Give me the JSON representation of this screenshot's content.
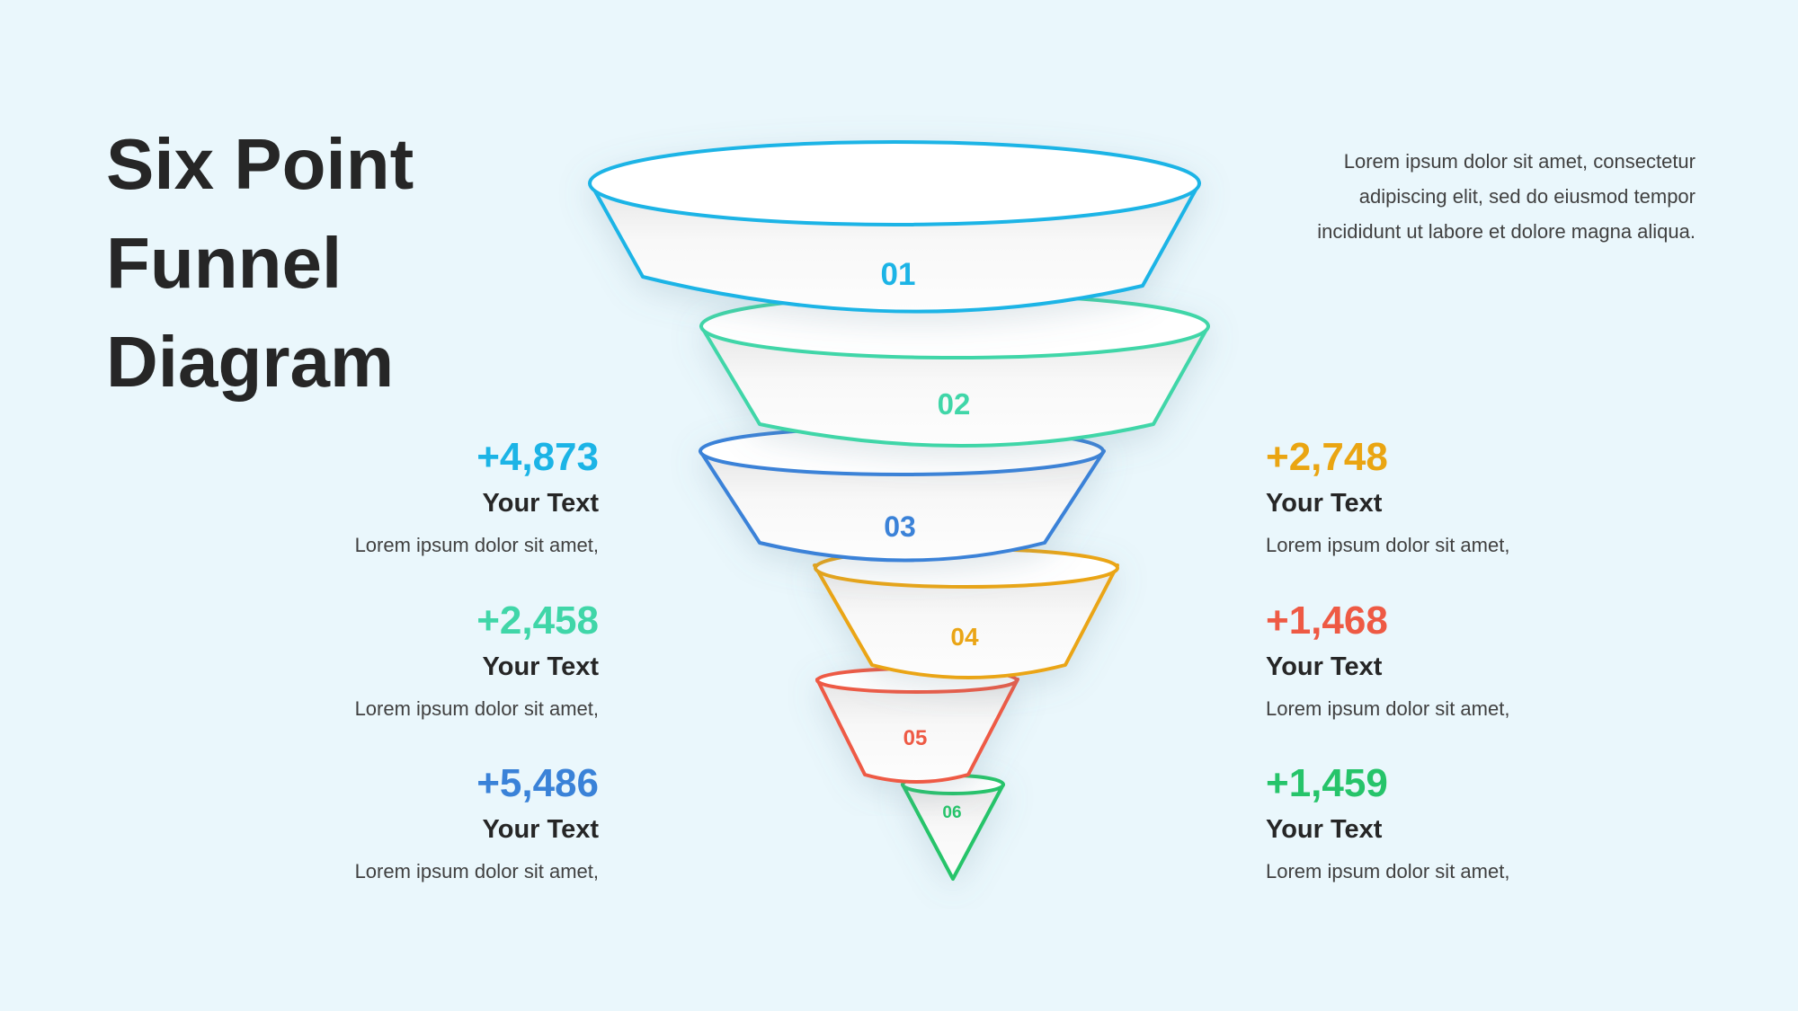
{
  "title": {
    "line1": "Six Point",
    "line2": "Funnel",
    "line3": "Diagram"
  },
  "description": "Lorem ipsum dolor sit amet, consectetur adipiscing elit, sed do eiusmod tempor incididunt ut labore et dolore magna aliqua.",
  "colors": {
    "s1": "#1cb4e6",
    "s2": "#40d6a8",
    "s3": "#3a82d8",
    "s4": "#eaa512",
    "s5": "#ee5a44",
    "s6": "#26c46a"
  },
  "segments": [
    {
      "label": "01",
      "color": "#1cb4e6"
    },
    {
      "label": "02",
      "color": "#40d6a8"
    },
    {
      "label": "03",
      "color": "#3a82d8"
    },
    {
      "label": "04",
      "color": "#eaa512"
    },
    {
      "label": "05",
      "color": "#ee5a44"
    },
    {
      "label": "06",
      "color": "#26c46a"
    }
  ],
  "stats": {
    "left": [
      {
        "value": "+4,873",
        "label": "Your Text",
        "text": "Lorem ipsum dolor sit amet,",
        "color": "#1cb4e6"
      },
      {
        "value": "+2,458",
        "label": "Your Text",
        "text": "Lorem ipsum dolor sit amet,",
        "color": "#40d6a8"
      },
      {
        "value": "+5,486",
        "label": "Your Text",
        "text": "Lorem ipsum dolor sit amet,",
        "color": "#3a82d8"
      }
    ],
    "right": [
      {
        "value": "+2,748",
        "label": "Your Text",
        "text": "Lorem ipsum dolor sit amet,",
        "color": "#eaa512"
      },
      {
        "value": "+1,468",
        "label": "Your Text",
        "text": "Lorem ipsum dolor sit amet,",
        "color": "#ee5a44"
      },
      {
        "value": "+1,459",
        "label": "Your Text",
        "text": "Lorem ipsum dolor sit amet,",
        "color": "#26c46a"
      }
    ]
  }
}
